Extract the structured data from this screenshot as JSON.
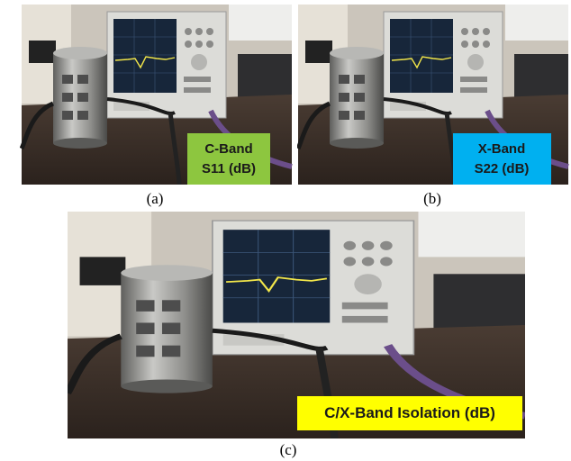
{
  "panels": [
    {
      "label_lines": [
        "C-Band",
        "S11 (dB)"
      ],
      "caption": "(a)"
    },
    {
      "label_lines": [
        "X-Band",
        "S22 (dB)"
      ],
      "caption": "(b)"
    },
    {
      "label_lines": [
        "C/X-Band Isolation (dB)"
      ],
      "caption": "(c)"
    }
  ]
}
